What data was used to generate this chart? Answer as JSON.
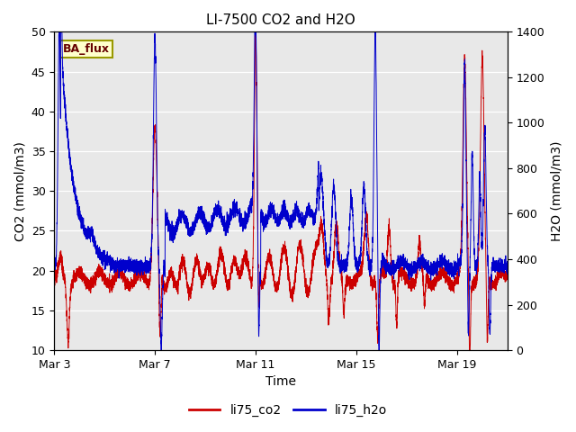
{
  "title": "LI-7500 CO2 and H2O",
  "ylabel_left": "CO2 (mmol/m3)",
  "ylabel_right": "H2O (mmol/m3)",
  "xlabel": "Time",
  "ylim_left": [
    10,
    50
  ],
  "ylim_right": [
    0,
    1400
  ],
  "yticks_left": [
    10,
    15,
    20,
    25,
    30,
    35,
    40,
    45,
    50
  ],
  "yticks_right": [
    0,
    200,
    400,
    600,
    800,
    1000,
    1200,
    1400
  ],
  "xtick_labels": [
    "Mar 3",
    "Mar 7",
    "Mar 11",
    "Mar 15",
    "Mar 19"
  ],
  "xtick_positions": [
    0,
    4,
    8,
    12,
    16
  ],
  "xlim": [
    0,
    18
  ],
  "color_co2": "#cc0000",
  "color_h2o": "#0000cc",
  "bg_color": "#e8e8e8",
  "fig_bg_color": "#ffffff",
  "label_box_text": "BA_flux",
  "label_box_facecolor": "#ffffcc",
  "label_box_edgecolor": "#999900",
  "legend_labels": [
    "li75_co2",
    "li75_h2o"
  ],
  "title_fontsize": 11,
  "axis_label_fontsize": 10,
  "tick_fontsize": 9,
  "legend_fontsize": 10,
  "total_days": 18,
  "n_points": 6000
}
